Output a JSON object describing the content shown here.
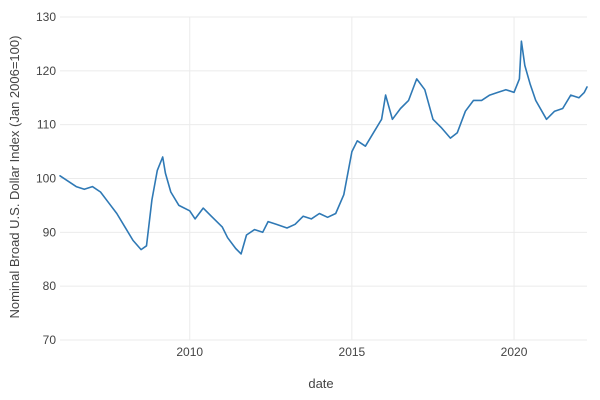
{
  "chart_data": {
    "type": "line",
    "xlabel": "date",
    "ylabel": "Nominal Broad U.S. Dollar Index (Jan 2006=100)",
    "xlim": [
      "2006-01-01",
      "2022-04-01"
    ],
    "ylim": [
      70,
      130
    ],
    "x_ticks": [
      "2010",
      "2015",
      "2020"
    ],
    "y_ticks": [
      "70",
      "80",
      "90",
      "100",
      "110",
      "120",
      "130"
    ],
    "grid": true,
    "legend": "none",
    "colors": {
      "line": "#2f79b5",
      "grid": "#ebebeb",
      "text": "#444444"
    },
    "series": [
      {
        "x": [
          "2006-01-01",
          "2006-04-01",
          "2006-07-01",
          "2006-10-01",
          "2007-01-01",
          "2007-04-01",
          "2007-07-01",
          "2007-10-01",
          "2008-01-01",
          "2008-04-01",
          "2008-07-01",
          "2008-09-01",
          "2008-11-01",
          "2009-01-01",
          "2009-03-01",
          "2009-04-01",
          "2009-06-01",
          "2009-09-01",
          "2010-01-01",
          "2010-03-01",
          "2010-06-01",
          "2010-09-01",
          "2011-01-01",
          "2011-03-01",
          "2011-06-01",
          "2011-08-01",
          "2011-10-01",
          "2012-01-01",
          "2012-04-01",
          "2012-06-01",
          "2012-09-01",
          "2013-01-01",
          "2013-04-01",
          "2013-07-01",
          "2013-10-01",
          "2014-01-01",
          "2014-04-01",
          "2014-07-01",
          "2014-10-01",
          "2015-01-01",
          "2015-03-01",
          "2015-06-01",
          "2015-09-01",
          "2015-12-01",
          "2016-01-15",
          "2016-04-01",
          "2016-07-01",
          "2016-10-01",
          "2017-01-01",
          "2017-04-01",
          "2017-07-01",
          "2017-10-01",
          "2018-01-15",
          "2018-04-01",
          "2018-07-01",
          "2018-10-01",
          "2019-01-01",
          "2019-04-01",
          "2019-07-01",
          "2019-10-01",
          "2020-01-01",
          "2020-03-01",
          "2020-03-23",
          "2020-05-01",
          "2020-07-01",
          "2020-09-01",
          "2021-01-01",
          "2021-04-01",
          "2021-07-01",
          "2021-10-01",
          "2022-01-01",
          "2022-03-01",
          "2022-04-01"
        ],
        "y": [
          100.5,
          99.5,
          98.5,
          98.0,
          98.5,
          97.5,
          95.5,
          93.5,
          91.0,
          88.5,
          86.8,
          87.5,
          96.0,
          101.5,
          104.0,
          101.0,
          97.5,
          95.0,
          94.0,
          92.5,
          94.5,
          93.0,
          91.0,
          89.0,
          87.0,
          86.0,
          89.5,
          90.5,
          90.0,
          92.0,
          91.5,
          90.8,
          91.5,
          93.0,
          92.5,
          93.5,
          92.8,
          93.5,
          97.0,
          105.0,
          107.0,
          106.0,
          108.5,
          111.0,
          115.5,
          111.0,
          113.0,
          114.5,
          118.5,
          116.5,
          111.0,
          109.5,
          107.5,
          108.5,
          112.5,
          114.5,
          114.5,
          115.5,
          116.0,
          116.5,
          116.0,
          118.5,
          125.5,
          121.0,
          117.5,
          114.5,
          111.0,
          112.5,
          113.0,
          115.5,
          115.0,
          116.0,
          117.0
        ]
      }
    ]
  }
}
